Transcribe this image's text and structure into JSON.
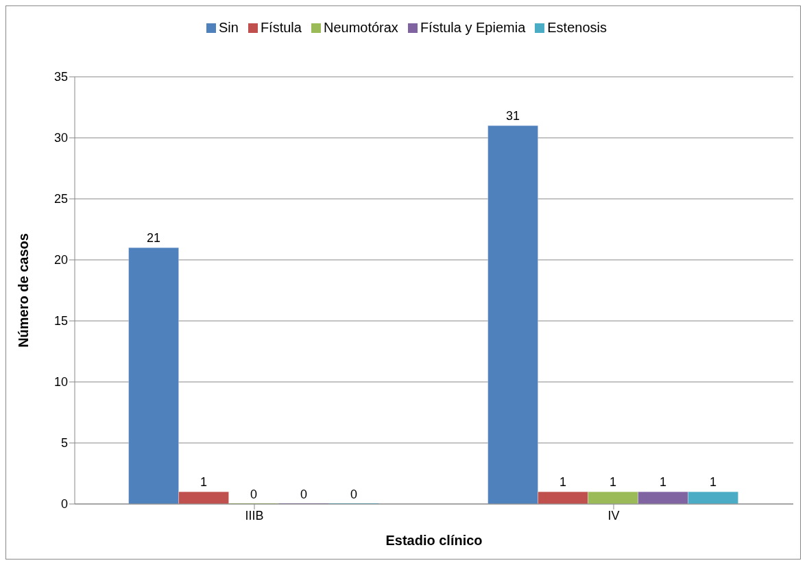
{
  "chart_data": {
    "type": "bar",
    "xlabel": "Estadio clínico",
    "ylabel": "Número de casos",
    "categories": [
      "IIIB",
      "IV"
    ],
    "series": [
      {
        "name": "Sin",
        "color": "#4f81bd",
        "values": [
          21,
          31
        ]
      },
      {
        "name": "Fístula",
        "color": "#c0504d",
        "values": [
          1,
          1
        ]
      },
      {
        "name": "Neumotórax",
        "color": "#9bbb59",
        "values": [
          0,
          1
        ]
      },
      {
        "name": "Fístula y Epiemia",
        "color": "#8064a2",
        "values": [
          0,
          1
        ]
      },
      {
        "name": "Estenosis",
        "color": "#4bacc6",
        "values": [
          0,
          1
        ]
      }
    ],
    "ylim": [
      0,
      35
    ],
    "yticks": [
      0,
      5,
      10,
      15,
      20,
      25,
      30,
      35
    ],
    "grid": "y",
    "legend": "top",
    "data_labels": true
  }
}
